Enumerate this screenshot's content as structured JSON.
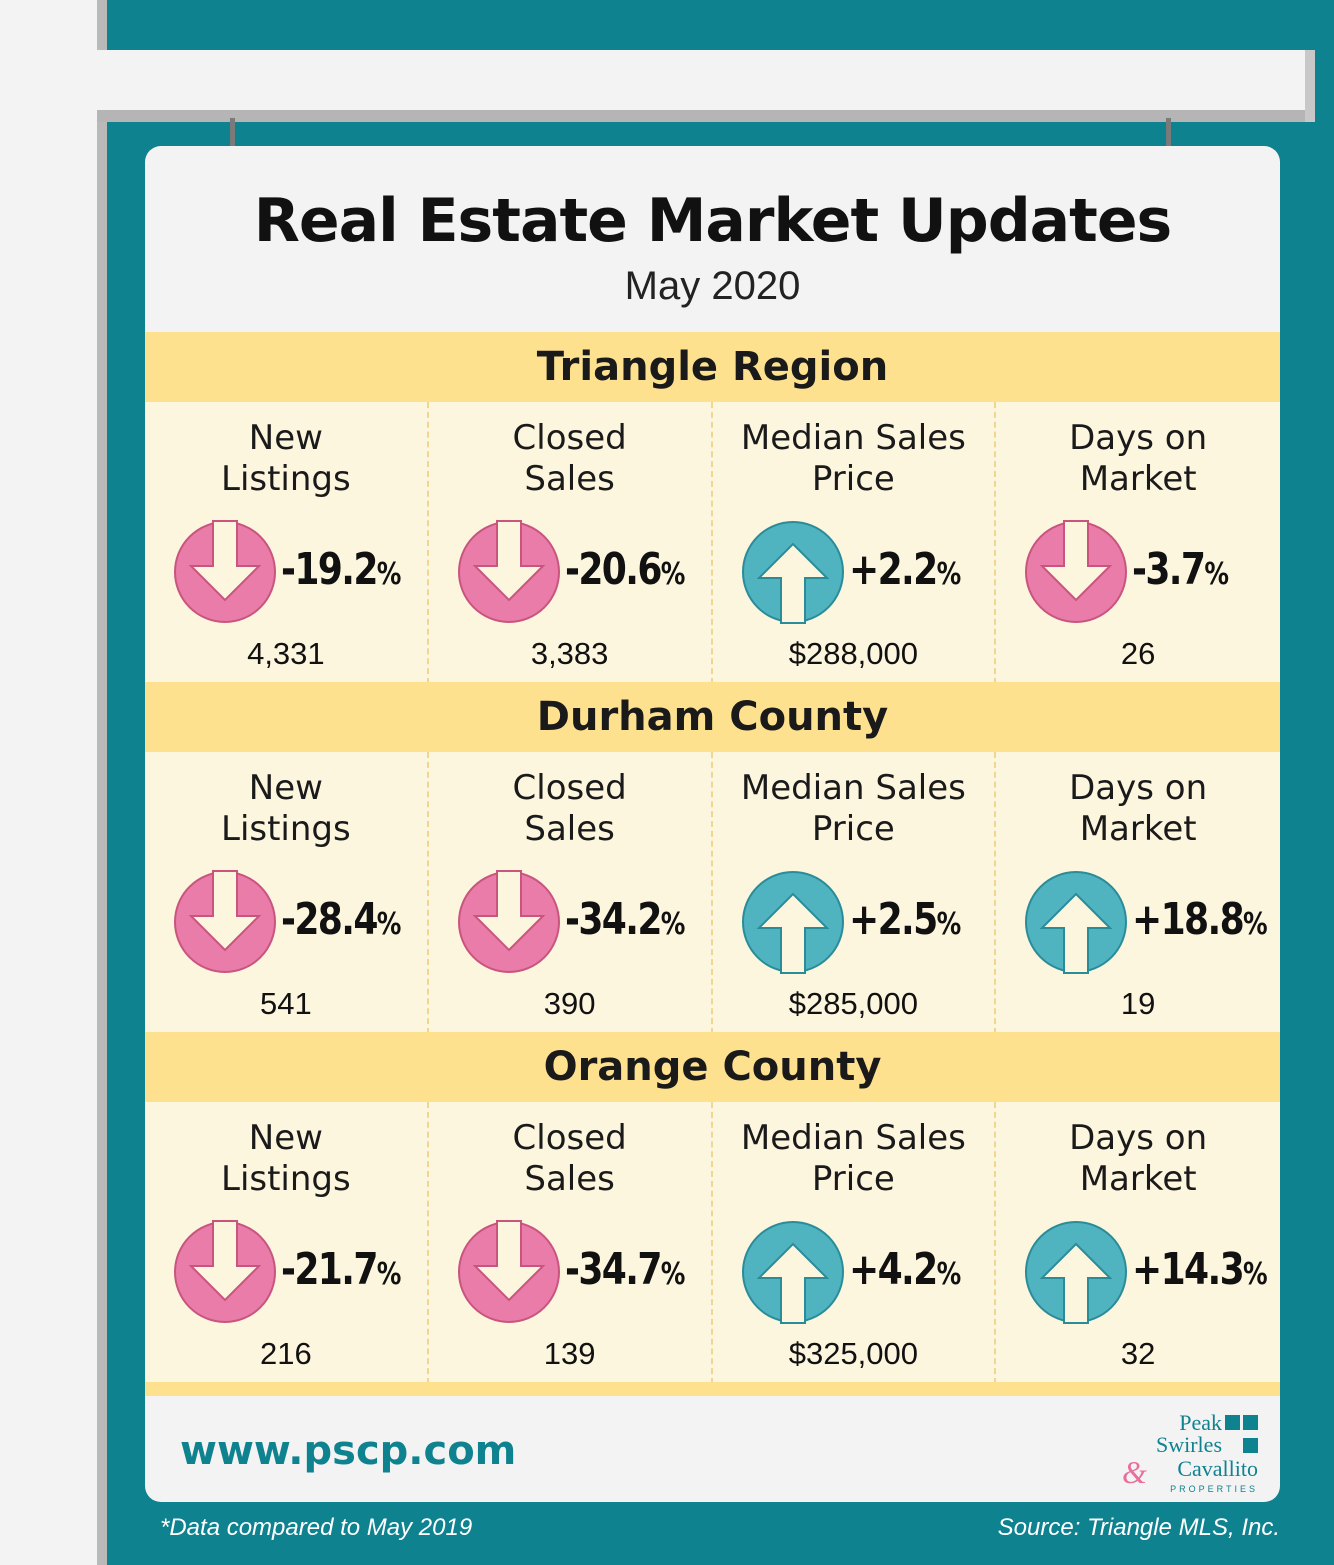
{
  "title": "Real Estate Market Updates",
  "subtitle": "May 2020",
  "colors": {
    "teal": "#0f8290",
    "pink": "#e97ca8",
    "blue": "#4fb3c0",
    "band": "#fde18f",
    "panel": "#fdf6df"
  },
  "regions": [
    {
      "name": "Triangle Region",
      "stats": [
        {
          "label": "New\nListings",
          "direction": "down",
          "change": "-19.2",
          "value": "4,331"
        },
        {
          "label": "Closed\nSales",
          "direction": "down",
          "change": "-20.6",
          "value": "3,383"
        },
        {
          "label": "Median Sales\nPrice",
          "direction": "up",
          "change": "+2.2",
          "value": "$288,000"
        },
        {
          "label": "Days on\nMarket",
          "direction": "down",
          "change": "-3.7",
          "value": "26"
        }
      ]
    },
    {
      "name": "Durham County",
      "stats": [
        {
          "label": "New\nListings",
          "direction": "down",
          "change": "-28.4",
          "value": "541"
        },
        {
          "label": "Closed\nSales",
          "direction": "down",
          "change": "-34.2",
          "value": "390"
        },
        {
          "label": "Median Sales\nPrice",
          "direction": "up",
          "change": "+2.5",
          "value": "$285,000"
        },
        {
          "label": "Days on\nMarket",
          "direction": "up",
          "change": "+18.8",
          "value": "19"
        }
      ]
    },
    {
      "name": "Orange County",
      "stats": [
        {
          "label": "New\nListings",
          "direction": "down",
          "change": "-21.7",
          "value": "216"
        },
        {
          "label": "Closed\nSales",
          "direction": "down",
          "change": "-34.7",
          "value": "139"
        },
        {
          "label": "Median Sales\nPrice",
          "direction": "up",
          "change": "+4.2",
          "value": "$325,000"
        },
        {
          "label": "Days on\nMarket",
          "direction": "up",
          "change": "+14.3",
          "value": "32"
        }
      ]
    }
  ],
  "percent_sign": "%",
  "website": "www.pscp.com",
  "logo": {
    "line1": "Peak",
    "line2": "Swirles",
    "amp": "&",
    "line3": "Cavallito",
    "sub": "PROPERTIES"
  },
  "footnote_left": "*Data compared to May 2019",
  "footnote_right": "Source: Triangle MLS, Inc."
}
